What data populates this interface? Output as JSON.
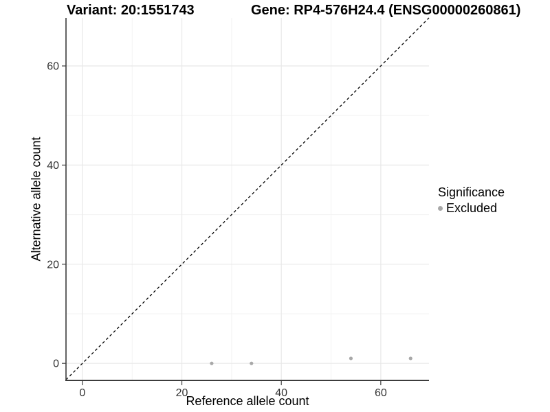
{
  "titles": {
    "variant": "Variant: 20:1551743",
    "gene": "Gene: RP4-576H24.4 (ENSG00000260861)"
  },
  "chart_data": {
    "type": "scatter",
    "title": "Variant: 20:1551743  |  Gene: RP4-576H24.4 (ENSG00000260861)",
    "xlabel": "Reference allele count",
    "ylabel": "Alternative allele count",
    "xlim": [
      -3.3,
      69.7
    ],
    "ylim": [
      -3.3,
      69.7
    ],
    "x_ticks": [
      0,
      20,
      40,
      60
    ],
    "y_ticks": [
      0,
      20,
      40,
      60
    ],
    "x_minor_ticks": [
      10,
      30,
      50
    ],
    "y_minor_ticks": [
      10,
      30,
      50
    ],
    "grid": true,
    "legend_position": "right",
    "series": [
      {
        "name": "Excluded",
        "marker": "circle",
        "color": "#a8a8a8",
        "points": [
          [
            26,
            0
          ],
          [
            34,
            0
          ],
          [
            54,
            1
          ],
          [
            66,
            1
          ]
        ]
      }
    ],
    "reference_line": {
      "kind": "identity",
      "slope": 1,
      "intercept": 0,
      "style": "dashed",
      "color": "#000000"
    }
  },
  "legend": {
    "title": "Significance",
    "items": [
      {
        "label": "Excluded",
        "color": "#a8a8a8"
      }
    ]
  },
  "colors": {
    "background": "#ffffff",
    "grid_major": "#e8e8e8",
    "grid_minor": "#f3f3f3",
    "axis_line": "#3c3c3c",
    "tick_text": "#333333",
    "title_text": "#000000",
    "point": "#a8a8a8",
    "identity_line": "#000000"
  }
}
